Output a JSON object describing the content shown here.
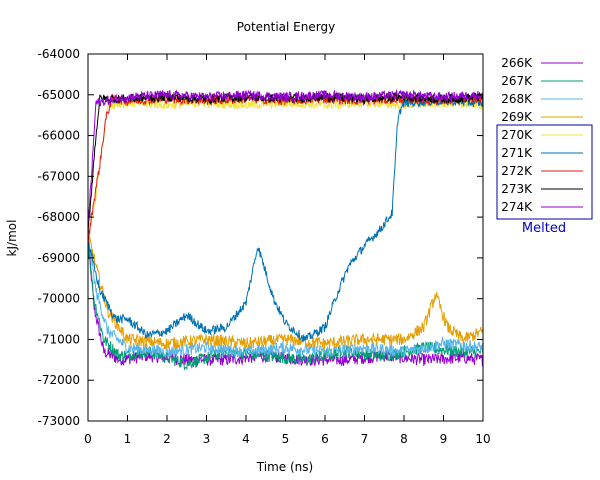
{
  "chart_data": {
    "type": "line",
    "title": "Potential Energy",
    "xlabel": "Time (ns)",
    "ylabel": "kJ/mol",
    "xlim": [
      0,
      10
    ],
    "ylim": [
      -73000,
      -64000
    ],
    "xticks": [
      0,
      1,
      2,
      3,
      4,
      5,
      6,
      7,
      8,
      9,
      10
    ],
    "yticks": [
      -73000,
      -72000,
      -71000,
      -70000,
      -69000,
      -68000,
      -67000,
      -66000,
      -65000,
      -64000
    ],
    "grid": false,
    "legend_position": "right",
    "legend_group_label": "Melted",
    "legend_group_members": [
      "270K",
      "271K",
      "272K",
      "273K",
      "274K"
    ],
    "series": [
      {
        "name": "266K",
        "color": "#9400d3",
        "state": "solid",
        "x": [
          0,
          0.15,
          0.4,
          0.8,
          1.5,
          2.5,
          3.5,
          4.5,
          5.5,
          6.5,
          7.5,
          8.5,
          9.5,
          10
        ],
        "y": [
          -68500,
          -70200,
          -71300,
          -71500,
          -71400,
          -71500,
          -71500,
          -71400,
          -71500,
          -71500,
          -71400,
          -71500,
          -71450,
          -71500
        ]
      },
      {
        "name": "267K",
        "color": "#009e73",
        "state": "solid",
        "x": [
          0,
          0.15,
          0.4,
          0.8,
          1.5,
          2.5,
          3.5,
          4.5,
          5.5,
          6.5,
          7.5,
          8.5,
          9.5,
          10
        ],
        "y": [
          -68600,
          -70000,
          -71000,
          -71400,
          -71300,
          -71600,
          -71300,
          -71400,
          -71500,
          -71300,
          -71400,
          -71200,
          -71300,
          -71300
        ]
      },
      {
        "name": "268K",
        "color": "#56b4e9",
        "state": "solid",
        "x": [
          0,
          0.2,
          0.5,
          1,
          2,
          3,
          4,
          5,
          6,
          7,
          8,
          9,
          10
        ],
        "y": [
          -68400,
          -69800,
          -70800,
          -71200,
          -71300,
          -71200,
          -71300,
          -71200,
          -71300,
          -71200,
          -71300,
          -71100,
          -71200
        ]
      },
      {
        "name": "269K",
        "color": "#e69f00",
        "state": "solid",
        "x": [
          0,
          0.2,
          0.5,
          1,
          2,
          3,
          4,
          5,
          6,
          7,
          8,
          8.5,
          8.8,
          9.1,
          9.5,
          10
        ],
        "y": [
          -68400,
          -69200,
          -70300,
          -71000,
          -71100,
          -71000,
          -71100,
          -71000,
          -71100,
          -71000,
          -71000,
          -70700,
          -69900,
          -70700,
          -71000,
          -70800
        ]
      },
      {
        "name": "270K",
        "color": "#f0e442",
        "state": "melted",
        "x": [
          0,
          0.2,
          0.35,
          0.5,
          1,
          2,
          3,
          4,
          5,
          6,
          7,
          8,
          9,
          10
        ],
        "y": [
          -68500,
          -67500,
          -66300,
          -65250,
          -65200,
          -65250,
          -65200,
          -65250,
          -65200,
          -65250,
          -65200,
          -65250,
          -65200,
          -65250
        ]
      },
      {
        "name": "271K",
        "color": "#0072b2",
        "state": "melted",
        "x": [
          0,
          0.3,
          0.7,
          1,
          1.5,
          2,
          2.5,
          3,
          3.5,
          4,
          4.3,
          4.7,
          5,
          5.5,
          6,
          6.3,
          6.6,
          7,
          7.4,
          7.7,
          7.85,
          8,
          9,
          10
        ],
        "y": [
          -68600,
          -69800,
          -70500,
          -70500,
          -70900,
          -70800,
          -70400,
          -70800,
          -70700,
          -70100,
          -68700,
          -70000,
          -70600,
          -71000,
          -70700,
          -69900,
          -69200,
          -68700,
          -68300,
          -67900,
          -65500,
          -65200,
          -65150,
          -65200
        ]
      },
      {
        "name": "272K",
        "color": "#e51e10",
        "state": "melted",
        "x": [
          0,
          0.15,
          0.3,
          0.45,
          0.6,
          1,
          2,
          3,
          4,
          5,
          6,
          7,
          8,
          9,
          10
        ],
        "y": [
          -68600,
          -67600,
          -66700,
          -65600,
          -65100,
          -65150,
          -65100,
          -65150,
          -65100,
          -65150,
          -65100,
          -65150,
          -65100,
          -65150,
          -65100
        ]
      },
      {
        "name": "273K",
        "color": "#000000",
        "state": "melted",
        "x": [
          0,
          0.1,
          0.2,
          0.3,
          1,
          2,
          3,
          4,
          5,
          6,
          7,
          8,
          9,
          10
        ],
        "y": [
          -68400,
          -67200,
          -66000,
          -65100,
          -65100,
          -65050,
          -65100,
          -65050,
          -65100,
          -65050,
          -65100,
          -65050,
          -65100,
          -65050
        ]
      },
      {
        "name": "274K",
        "color": "#9400d3",
        "state": "melted",
        "x": [
          0,
          0.1,
          0.2,
          1,
          2,
          3,
          4,
          5,
          6,
          7,
          8,
          9,
          10
        ],
        "y": [
          -68200,
          -66800,
          -65200,
          -65050,
          -65000,
          -65050,
          -65000,
          -65050,
          -65000,
          -65050,
          -65000,
          -65050,
          -65000
        ]
      }
    ]
  }
}
